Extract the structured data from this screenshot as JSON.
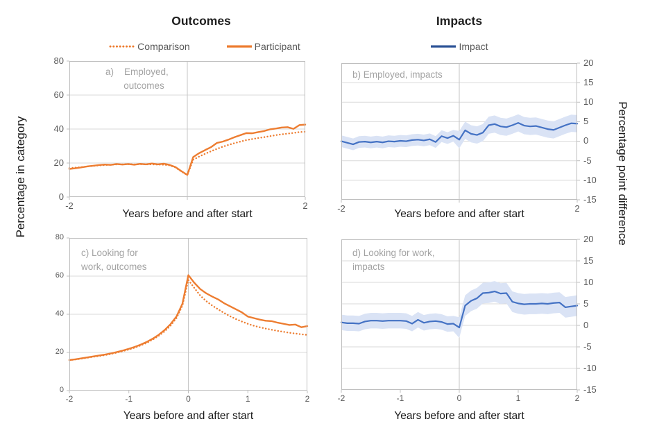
{
  "titles": {
    "outcomes": "Outcomes",
    "impacts": "Impacts"
  },
  "legend": {
    "outcomes": {
      "items": [
        {
          "label": "Comparison"
        },
        {
          "label": "Participant"
        }
      ]
    },
    "impacts": {
      "items": [
        {
          "label": "Impact"
        }
      ]
    }
  },
  "axis_labels": {
    "left_y": "Percentage in category",
    "right_y": "Percentage point difference",
    "x": "Years before and after start"
  },
  "colors": {
    "orange": "#ED7D31",
    "impact_line": "#4472C4",
    "impact_band": "#DAE3F5",
    "impact_legend": "#2F5597",
    "gridline": "#D9D9D9",
    "gridline_vertical": "#C6C6C6",
    "axis_line": "#BFBFBF",
    "tick_text": "#595959",
    "panel_label_text": "#A3A3A3"
  },
  "chart_data": [
    {
      "id": "a",
      "type": "line",
      "panel_label": "a)    Employed,\n       outcomes",
      "xlabel": "Years before and after start",
      "xlim": [
        -2,
        2
      ],
      "ylim": [
        0,
        80
      ],
      "yticks": [
        0,
        20,
        40,
        60,
        80
      ],
      "ytick_side": "left",
      "gridlines_y": [
        20,
        40,
        60
      ],
      "gridlines_x": [
        0
      ],
      "xticks": [
        -2,
        2
      ],
      "xtick_marks": [
        -2,
        0,
        2
      ],
      "series": [
        {
          "name": "Comparison",
          "style": "dotted",
          "color": "#ED7D31",
          "width": 2.4,
          "values": [
            17.0,
            17.3,
            17.6,
            18.0,
            18.3,
            18.6,
            18.8,
            19.0,
            19.2,
            19.2,
            19.3,
            19.2,
            19.3,
            19.2,
            19.2,
            19.1,
            19.0,
            18.6,
            17.4,
            15.0,
            12.9,
            21.9,
            23.8,
            25.4,
            26.9,
            28.3,
            29.6,
            30.7,
            31.7,
            32.6,
            33.5,
            34.1,
            34.7,
            35.2,
            35.8,
            36.4,
            36.9,
            37.3,
            37.7,
            38.2,
            38.4
          ]
        },
        {
          "name": "Participant",
          "style": "solid",
          "color": "#ED7D31",
          "width": 2.4,
          "values": [
            16.5,
            16.9,
            17.4,
            18.0,
            18.4,
            18.8,
            19.1,
            18.9,
            19.4,
            19.1,
            19.4,
            19.0,
            19.5,
            19.2,
            19.7,
            19.2,
            19.6,
            18.9,
            17.6,
            15.2,
            13.0,
            23.5,
            25.8,
            27.6,
            29.3,
            31.8,
            32.6,
            33.8,
            35.2,
            36.4,
            37.6,
            37.5,
            38.2,
            38.8,
            39.8,
            40.3,
            40.9,
            41.1,
            40.1,
            42.3,
            42.6
          ]
        }
      ]
    },
    {
      "id": "b",
      "type": "line",
      "panel_label": "b) Employed, impacts",
      "xlabel": "Years before and after start",
      "xlim": [
        -2,
        2
      ],
      "ylim": [
        -15,
        20
      ],
      "yticks": [
        20,
        15,
        10,
        5,
        0,
        -5,
        -10,
        -15
      ],
      "ytick_side": "right",
      "gridlines_y": [
        -10,
        -5,
        0,
        5,
        10,
        15
      ],
      "gridlines_x": [
        0
      ],
      "xticks": [
        -2,
        2
      ],
      "xtick_marks": [
        -2,
        0,
        2
      ],
      "band": {
        "halfwidth_pre": 1.5,
        "halfwidth_post": 2.2,
        "color": "#DAE3F5"
      },
      "series": [
        {
          "name": "Impact",
          "style": "solid",
          "color": "#4472C4",
          "width": 2.2,
          "values": [
            0.0,
            -0.4,
            -0.8,
            -0.2,
            -0.1,
            -0.3,
            -0.1,
            -0.3,
            0.0,
            -0.1,
            0.1,
            0.0,
            0.3,
            0.4,
            0.2,
            0.5,
            -0.2,
            1.3,
            0.8,
            1.4,
            0.4,
            2.8,
            1.9,
            1.6,
            2.2,
            4.1,
            4.4,
            3.8,
            3.6,
            4.1,
            4.7,
            4.0,
            3.8,
            3.9,
            3.5,
            3.1,
            2.9,
            3.5,
            4.1,
            4.6,
            4.5
          ]
        }
      ]
    },
    {
      "id": "c",
      "type": "line",
      "panel_label": "c) Looking for\nwork, outcomes",
      "xlabel": "Years before and after start",
      "xlim": [
        -2,
        2
      ],
      "ylim": [
        0,
        80
      ],
      "yticks": [
        0,
        20,
        40,
        60,
        80
      ],
      "ytick_side": "left",
      "gridlines_y": [
        20,
        40,
        60
      ],
      "gridlines_x": [
        0
      ],
      "xticks": [
        -2,
        -1,
        0,
        1,
        2
      ],
      "xtick_marks": [
        -2,
        -1,
        0,
        1,
        2
      ],
      "series": [
        {
          "name": "Comparison",
          "style": "dotted",
          "color": "#ED7D31",
          "width": 2.4,
          "values": [
            16.0,
            16.3,
            16.7,
            17.2,
            17.7,
            18.1,
            18.6,
            19.2,
            19.9,
            20.7,
            21.5,
            22.5,
            23.7,
            25.0,
            26.7,
            28.7,
            31.0,
            34.0,
            38.0,
            44.5,
            58.0,
            53.8,
            49.8,
            46.9,
            44.6,
            42.6,
            40.7,
            39.0,
            37.5,
            36.2,
            35.0,
            34.0,
            33.2,
            32.5,
            31.9,
            31.3,
            30.8,
            30.3,
            29.9,
            29.5,
            29.2
          ]
        },
        {
          "name": "Participant",
          "style": "solid",
          "color": "#ED7D31",
          "width": 2.4,
          "values": [
            16.0,
            16.4,
            16.9,
            17.4,
            17.9,
            18.4,
            18.9,
            19.5,
            20.2,
            21.0,
            21.9,
            22.9,
            24.1,
            25.5,
            27.2,
            29.2,
            31.7,
            34.8,
            38.8,
            45.5,
            60.5,
            56.5,
            53.2,
            51.0,
            49.3,
            47.8,
            45.8,
            44.2,
            42.6,
            41.0,
            38.8,
            38.0,
            37.2,
            36.6,
            36.4,
            35.6,
            35.0,
            34.4,
            34.6,
            33.2,
            33.8
          ]
        }
      ]
    },
    {
      "id": "d",
      "type": "line",
      "panel_label": "d) Looking for work,\nimpacts",
      "xlabel": "Years before and after start",
      "xlim": [
        -2,
        2
      ],
      "ylim": [
        -15,
        20
      ],
      "yticks": [
        20,
        15,
        10,
        5,
        0,
        -5,
        -10,
        -15
      ],
      "ytick_side": "right",
      "gridlines_y": [
        -10,
        -5,
        0,
        5,
        10,
        15
      ],
      "gridlines_x": [
        0
      ],
      "xticks": [
        -2,
        -1,
        0,
        1,
        2
      ],
      "xtick_marks": [
        -2,
        -1,
        0,
        1,
        2
      ],
      "band": {
        "halfwidth_pre": 1.8,
        "halfwidth_post": 2.4,
        "color": "#DAE3F5"
      },
      "series": [
        {
          "name": "Impact",
          "style": "solid",
          "color": "#4472C4",
          "width": 2.2,
          "values": [
            0.7,
            0.5,
            0.5,
            0.4,
            0.9,
            1.1,
            1.1,
            1.0,
            1.1,
            1.1,
            1.1,
            1.0,
            0.4,
            1.3,
            0.6,
            0.9,
            1.0,
            0.8,
            0.3,
            0.4,
            -0.5,
            4.6,
            5.7,
            6.3,
            7.5,
            7.6,
            7.9,
            7.4,
            7.5,
            5.5,
            5.1,
            4.9,
            5.0,
            5.0,
            5.1,
            5.0,
            5.2,
            5.3,
            4.2,
            4.4,
            4.6
          ]
        }
      ]
    }
  ]
}
